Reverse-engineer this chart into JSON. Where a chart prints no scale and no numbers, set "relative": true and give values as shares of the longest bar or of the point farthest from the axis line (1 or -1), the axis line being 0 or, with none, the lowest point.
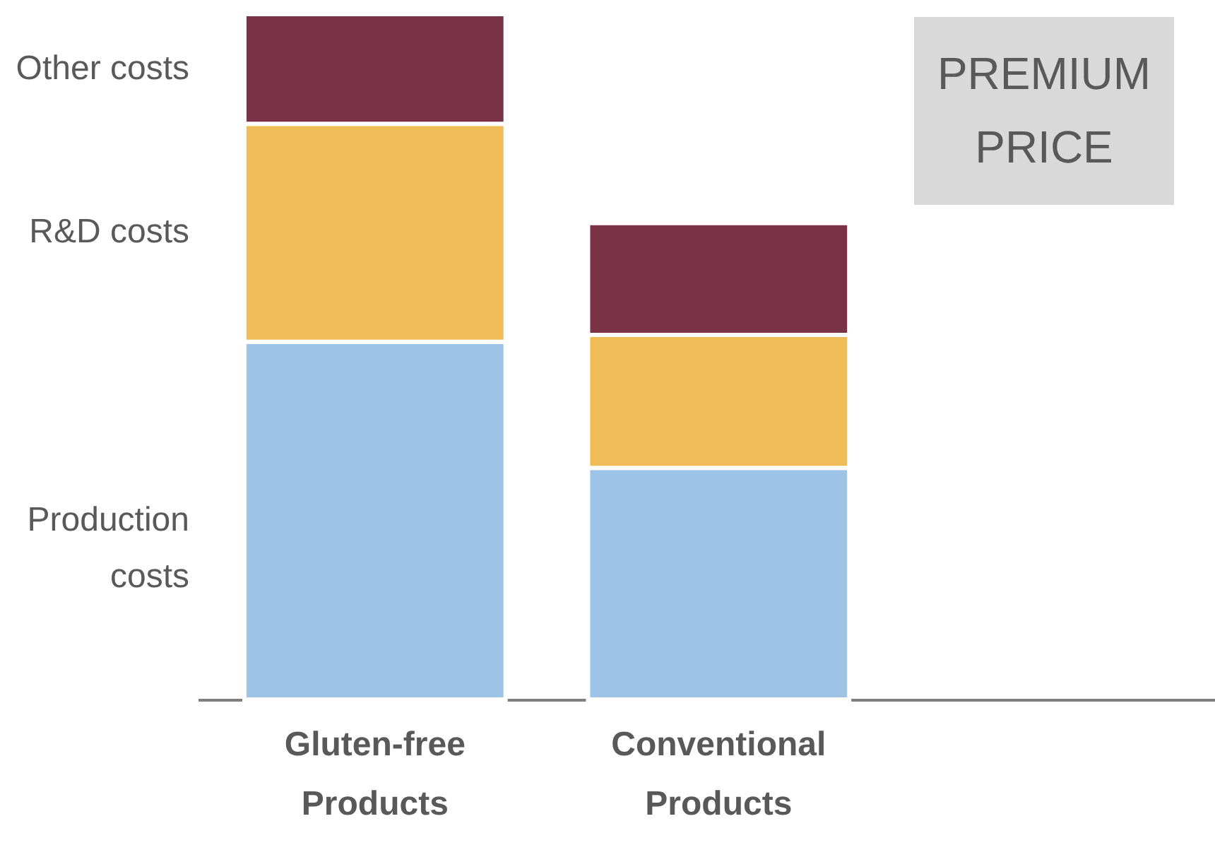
{
  "chart_data": {
    "type": "bar",
    "stacked": true,
    "relative": true,
    "categories": [
      "Gluten-free Products",
      "Conventional Products"
    ],
    "series": [
      {
        "name": "Production costs",
        "color": "#9dc3e6",
        "values": [
          0.522,
          0.338
        ]
      },
      {
        "name": "R&D costs",
        "color": "#f0bc58",
        "values": [
          0.318,
          0.194
        ]
      },
      {
        "name": "Other costs",
        "color": "#7a3346",
        "values": [
          0.16,
          0.163
        ]
      }
    ],
    "annotations": [
      "PREMIUM PRICE"
    ],
    "grid": false
  }
}
